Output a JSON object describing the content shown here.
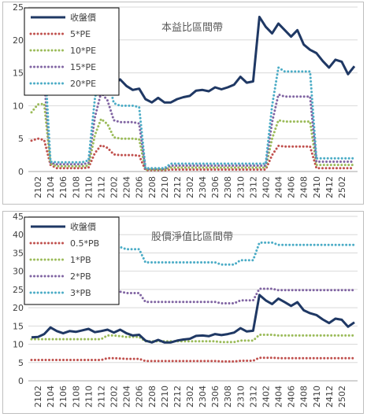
{
  "chart_data": [
    {
      "type": "line",
      "title": "本益比區間帶",
      "xlabel": "",
      "ylabel": "",
      "ylim": [
        0,
        25
      ],
      "yticks": [
        0,
        5,
        10,
        15,
        20,
        25
      ],
      "grid": true,
      "legend_position": "top-left",
      "x_ticks": [
        "2102",
        "2104",
        "2106",
        "2108",
        "2110",
        "2112",
        "2202",
        "2204",
        "2206",
        "2208",
        "2210",
        "2212",
        "2302",
        "2304",
        "2306",
        "2308",
        "2310",
        "2312",
        "2402",
        "2404",
        "2406",
        "2408",
        "2410",
        "2412",
        "2502"
      ],
      "series": [
        {
          "name": "收盤價",
          "color": "#1f3864",
          "style": "solid",
          "values": [
            11.9,
            12.0,
            12.8,
            14.6,
            13.6,
            13.0,
            13.6,
            13.4,
            13.8,
            14.2,
            13.3,
            13.6,
            14.0,
            13.2,
            14.0,
            13.0,
            12.4,
            12.6,
            11.0,
            10.5,
            11.2,
            10.5,
            10.5,
            11.0,
            11.3,
            11.5,
            12.3,
            12.4,
            12.2,
            12.8,
            12.5,
            12.8,
            13.2,
            14.4,
            13.5,
            13.7,
            23.5,
            22.0,
            21.0,
            22.5,
            21.5,
            20.5,
            21.5,
            19.3,
            18.5,
            18.0,
            16.8,
            15.8,
            17.0,
            16.7,
            14.8,
            16.0
          ]
        },
        {
          "name": "5*PE",
          "color": "#c0504d",
          "style": "dotted",
          "values": [
            4.7,
            5.0,
            4.8,
            1.0,
            0.5,
            0.5,
            0.5,
            0.5,
            0.5,
            0.6,
            2.8,
            4.0,
            3.6,
            2.6,
            2.5,
            2.5,
            2.5,
            2.4,
            0.2,
            0.2,
            0.2,
            0.2,
            0.3,
            0.3,
            0.3,
            0.3,
            0.3,
            0.3,
            0.3,
            0.3,
            0.3,
            0.3,
            0.3,
            0.3,
            0.3,
            0.3,
            0.3,
            0.3,
            2.5,
            3.9,
            3.8,
            3.8,
            3.8,
            3.8,
            3.8,
            0.5,
            0.5,
            0.5,
            0.5,
            0.5,
            0.5,
            0.5
          ]
        },
        {
          "name": "10*PE",
          "color": "#9bbb59",
          "style": "dotted",
          "values": [
            9.0,
            10.2,
            10.3,
            1.2,
            0.8,
            0.8,
            0.8,
            0.8,
            0.8,
            0.9,
            5.5,
            8.0,
            7.2,
            5.2,
            5.0,
            5.0,
            5.0,
            4.9,
            0.3,
            0.3,
            0.3,
            0.3,
            0.6,
            0.6,
            0.6,
            0.6,
            0.6,
            0.6,
            0.6,
            0.6,
            0.6,
            0.6,
            0.6,
            0.6,
            0.6,
            0.6,
            0.6,
            0.6,
            5.0,
            7.8,
            7.6,
            7.6,
            7.6,
            7.6,
            7.6,
            1.0,
            1.0,
            1.0,
            1.0,
            1.0,
            1.0,
            1.0
          ]
        },
        {
          "name": "15*PE",
          "color": "#8064a2",
          "style": "dotted",
          "values": [
            13.5,
            15.2,
            14.0,
            1.3,
            1.1,
            1.1,
            1.1,
            1.1,
            1.1,
            1.3,
            8.2,
            12.0,
            10.8,
            7.8,
            7.5,
            7.5,
            7.5,
            7.3,
            0.4,
            0.4,
            0.4,
            0.4,
            0.9,
            0.9,
            0.9,
            0.9,
            0.9,
            0.9,
            0.9,
            0.9,
            0.9,
            0.9,
            0.9,
            0.9,
            0.9,
            0.9,
            0.9,
            0.9,
            7.5,
            11.7,
            11.4,
            11.4,
            11.4,
            11.4,
            11.4,
            1.5,
            1.5,
            1.5,
            1.5,
            1.5,
            1.5,
            1.5
          ]
        },
        {
          "name": "20*PE",
          "color": "#4bacc6",
          "style": "dotted",
          "values": [
            18.0,
            20.2,
            18.5,
            1.5,
            1.4,
            1.4,
            1.4,
            1.4,
            1.4,
            1.7,
            11.0,
            16.0,
            14.4,
            10.4,
            10.0,
            10.0,
            10.0,
            9.8,
            0.5,
            0.5,
            0.5,
            0.5,
            1.2,
            1.2,
            1.2,
            1.2,
            1.2,
            1.2,
            1.2,
            1.2,
            1.2,
            1.2,
            1.2,
            1.2,
            1.2,
            1.2,
            1.2,
            1.2,
            10.0,
            15.8,
            15.2,
            15.2,
            15.2,
            15.2,
            15.2,
            2.0,
            2.0,
            2.0,
            2.0,
            2.0,
            2.0,
            2.0
          ]
        }
      ]
    },
    {
      "type": "line",
      "title": "股價淨值比區間帶",
      "xlabel": "",
      "ylabel": "",
      "ylim": [
        0,
        45
      ],
      "yticks": [
        0,
        5,
        10,
        15,
        20,
        25,
        30,
        35,
        40,
        45
      ],
      "grid": true,
      "legend_position": "top-left",
      "x_ticks": [
        "2102",
        "2104",
        "2106",
        "2108",
        "2110",
        "2112",
        "2202",
        "2204",
        "2206",
        "2208",
        "2210",
        "2212",
        "2302",
        "2304",
        "2306",
        "2308",
        "2310",
        "2312",
        "2402",
        "2404",
        "2406",
        "2408",
        "2410",
        "2412",
        "2502"
      ],
      "series": [
        {
          "name": "收盤價",
          "color": "#1f3864",
          "style": "solid",
          "values": [
            11.9,
            12.0,
            12.8,
            14.6,
            13.6,
            13.0,
            13.6,
            13.4,
            13.8,
            14.2,
            13.3,
            13.6,
            14.0,
            13.2,
            14.0,
            13.0,
            12.4,
            12.6,
            11.0,
            10.5,
            11.2,
            10.5,
            10.5,
            11.0,
            11.3,
            11.5,
            12.3,
            12.4,
            12.2,
            12.8,
            12.5,
            12.8,
            13.2,
            14.4,
            13.5,
            13.7,
            23.5,
            22.0,
            21.0,
            22.5,
            21.5,
            20.5,
            21.5,
            19.3,
            18.5,
            18.0,
            16.8,
            15.8,
            17.0,
            16.7,
            14.8,
            16.0
          ]
        },
        {
          "name": "0.5*PB",
          "color": "#c0504d",
          "style": "dotted",
          "values": [
            5.7,
            5.7,
            5.7,
            5.7,
            5.7,
            5.7,
            5.7,
            5.7,
            5.7,
            5.7,
            5.7,
            5.7,
            6.2,
            6.2,
            6.1,
            6.0,
            6.0,
            6.0,
            5.4,
            5.4,
            5.4,
            5.4,
            5.4,
            5.4,
            5.4,
            5.4,
            5.4,
            5.4,
            5.4,
            5.4,
            5.3,
            5.3,
            5.3,
            5.5,
            5.5,
            5.5,
            6.3,
            6.3,
            6.3,
            6.2,
            6.2,
            6.2,
            6.2,
            6.2,
            6.2,
            6.2,
            6.2,
            6.2,
            6.2,
            6.2,
            6.2,
            6.2
          ]
        },
        {
          "name": "1*PB",
          "color": "#9bbb59",
          "style": "dotted",
          "values": [
            11.4,
            11.4,
            11.4,
            11.4,
            11.4,
            11.4,
            11.4,
            11.4,
            11.4,
            11.4,
            11.4,
            11.4,
            12.4,
            12.4,
            12.2,
            12.0,
            12.0,
            12.0,
            10.8,
            10.8,
            10.8,
            10.8,
            10.8,
            10.8,
            10.8,
            10.8,
            10.8,
            10.8,
            10.8,
            10.8,
            10.6,
            10.6,
            10.6,
            11.0,
            11.0,
            11.0,
            12.6,
            12.6,
            12.6,
            12.4,
            12.4,
            12.4,
            12.4,
            12.4,
            12.4,
            12.4,
            12.4,
            12.4,
            12.4,
            12.4,
            12.4,
            12.4
          ]
        },
        {
          "name": "2*PB",
          "color": "#8064a2",
          "style": "dotted",
          "values": [
            22.8,
            22.8,
            22.8,
            22.8,
            23.0,
            23.0,
            23.0,
            23.0,
            23.0,
            23.0,
            23.0,
            23.0,
            24.8,
            24.8,
            24.4,
            24.0,
            24.0,
            24.0,
            21.6,
            21.6,
            21.6,
            21.6,
            21.6,
            21.6,
            21.6,
            21.6,
            21.6,
            21.6,
            21.6,
            21.6,
            21.2,
            21.2,
            21.2,
            22.0,
            22.0,
            22.0,
            25.2,
            25.2,
            25.2,
            24.8,
            24.8,
            24.8,
            24.8,
            24.8,
            24.8,
            24.8,
            24.8,
            24.8,
            24.8,
            24.8,
            24.8,
            24.8
          ]
        },
        {
          "name": "3*PB",
          "color": "#4bacc6",
          "style": "dotted",
          "values": [
            34.2,
            34.2,
            34.2,
            34.2,
            34.5,
            34.5,
            34.5,
            34.5,
            34.5,
            34.5,
            34.5,
            34.5,
            37.2,
            37.2,
            36.6,
            36.0,
            36.0,
            36.0,
            32.4,
            32.4,
            32.4,
            32.4,
            32.4,
            32.4,
            32.4,
            32.4,
            32.4,
            32.4,
            32.4,
            32.4,
            31.8,
            31.8,
            31.8,
            33.0,
            33.0,
            33.0,
            37.8,
            37.8,
            37.8,
            37.2,
            37.2,
            37.2,
            37.2,
            37.2,
            37.2,
            37.2,
            37.2,
            37.2,
            37.2,
            37.2,
            37.2,
            37.2
          ]
        }
      ]
    }
  ]
}
